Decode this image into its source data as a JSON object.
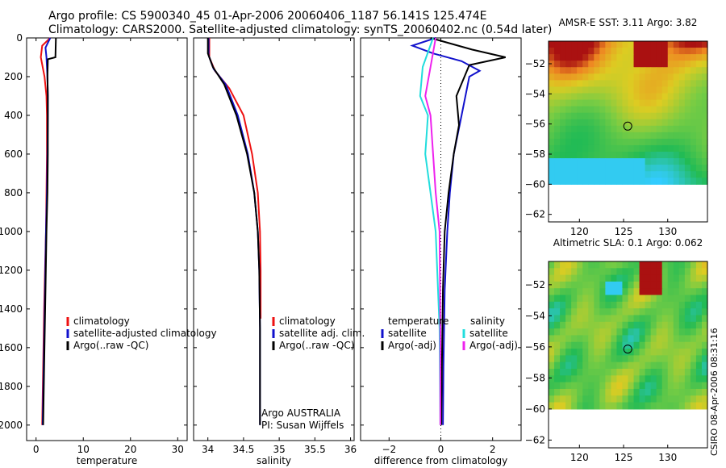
{
  "header": {
    "line1": "Argo profile: CS 5900340_45 01-Apr-2006 20060406_1187 56.141S 125.474E",
    "line2": "Climatology: CARS2000. Satellite-adjusted climatology: synTS_20060402.nc (0.54d later)"
  },
  "stamp": "CSIRO 08-Apr-2006 08:31:16",
  "colors": {
    "climatology": "#ee1111",
    "satellite": "#1111cc",
    "argo": "#000000",
    "salinity_satellite": "#22dddd",
    "salinity_argo": "#ee22ee"
  },
  "chart_data": [
    {
      "type": "line",
      "id": "temperature",
      "xlabel": "temperature",
      "ylabel": "",
      "xlim": [
        -2,
        32
      ],
      "ylim": [
        2080,
        0
      ],
      "xticks": [
        0,
        10,
        20,
        30
      ],
      "yticks": [
        0,
        200,
        400,
        600,
        800,
        1000,
        1200,
        1400,
        1600,
        1800,
        2000
      ],
      "legend": [
        "climatology",
        "satellite-adjusted climatology",
        "Argo(..raw -QC)"
      ],
      "series": [
        {
          "name": "climatology",
          "color": "#ee1111",
          "x": [
            3.0,
            1.3,
            1.0,
            1.4,
            1.8,
            2.2,
            2.3,
            2.3,
            2.2,
            2.1,
            1.9,
            1.7,
            1.5,
            1.3
          ],
          "y": [
            0,
            40,
            100,
            150,
            200,
            300,
            400,
            600,
            800,
            1000,
            1200,
            1400,
            1700,
            2000
          ]
        },
        {
          "name": "satellite-adjusted climatology",
          "color": "#1111cc",
          "x": [
            3.0,
            2.0,
            2.2,
            2.4,
            2.5,
            2.5,
            2.4,
            2.3,
            2.1,
            1.9,
            1.6,
            1.4
          ],
          "y": [
            0,
            50,
            100,
            200,
            300,
            400,
            600,
            800,
            1000,
            1300,
            1700,
            2000
          ]
        },
        {
          "name": "Argo(..raw -QC)",
          "color": "#000000",
          "x": [
            4.2,
            4.1,
            2.5,
            2.4,
            2.5,
            2.5,
            2.5,
            2.4,
            2.2,
            2.0,
            1.7,
            1.5
          ],
          "y": [
            0,
            100,
            110,
            200,
            300,
            400,
            600,
            800,
            1000,
            1300,
            1700,
            2000
          ]
        }
      ]
    },
    {
      "type": "line",
      "id": "salinity",
      "xlabel": "salinity",
      "ylabel": "",
      "xlim": [
        33.8,
        36.05
      ],
      "ylim": [
        2080,
        0
      ],
      "xticks": [
        34,
        34.5,
        35,
        35.5,
        36
      ],
      "legend": [
        "climatology",
        "satellite adj. clim.",
        "Argo(..raw -QC)"
      ],
      "annotations": [
        "Argo AUSTRALIA",
        "PI: Susan Wijffels"
      ],
      "series": [
        {
          "name": "climatology",
          "color": "#ee1111",
          "x": [
            34.02,
            34.02,
            34.1,
            34.3,
            34.5,
            34.62,
            34.7,
            34.73,
            34.74,
            34.74,
            34.74
          ],
          "y": [
            0,
            100,
            170,
            260,
            400,
            600,
            800,
            1000,
            1200,
            1400,
            1450
          ]
        },
        {
          "name": "satellite adj. clim.",
          "color": "#1111cc",
          "x": [
            34.01,
            34.01,
            34.08,
            34.25,
            34.42,
            34.56,
            34.65,
            34.7,
            34.72,
            34.73,
            34.73,
            34.73
          ],
          "y": [
            0,
            90,
            160,
            240,
            400,
            600,
            800,
            1000,
            1200,
            1500,
            1800,
            2000
          ]
        },
        {
          "name": "Argo(..raw -QC)",
          "color": "#000000",
          "x": [
            34.0,
            34.0,
            34.07,
            34.23,
            34.4,
            34.55,
            34.65,
            34.7,
            34.72,
            34.73,
            34.73,
            34.73
          ],
          "y": [
            0,
            80,
            150,
            240,
            400,
            600,
            800,
            1000,
            1200,
            1500,
            1800,
            2000
          ]
        }
      ]
    },
    {
      "type": "line",
      "id": "difference",
      "xlabel": "difference from climatology",
      "ylabel": "",
      "xlim": [
        -3.1,
        3.1
      ],
      "ylim": [
        2080,
        0
      ],
      "xticks": [
        -2,
        0,
        2
      ],
      "legend": [
        "temperature",
        "satellite",
        "Argo(-adj)",
        "salinity",
        "satellite",
        "Argo(-adj)"
      ],
      "series": [
        {
          "name": "temperature satellite",
          "color": "#1111cc",
          "x": [
            -0.2,
            -1.1,
            -0.3,
            0.8,
            1.5,
            1.1,
            0.8,
            0.5,
            0.35,
            0.25,
            0.15,
            0.1,
            0.08
          ],
          "y": [
            0,
            40,
            80,
            120,
            170,
            200,
            400,
            600,
            800,
            1000,
            1300,
            1700,
            2000
          ]
        },
        {
          "name": "temperature Argo(-adj)",
          "color": "#000000",
          "x": [
            -0.4,
            1.2,
            2.5,
            1.1,
            0.6,
            0.7,
            0.5,
            0.3,
            0.15,
            0.08,
            0.04,
            0.02
          ],
          "y": [
            0,
            60,
            100,
            140,
            300,
            450,
            600,
            800,
            1000,
            1300,
            1700,
            2000
          ]
        },
        {
          "name": "salinity satellite",
          "color": "#22dddd",
          "x": [
            -0.3,
            -0.7,
            -0.8,
            -0.5,
            -0.6,
            -0.4,
            -0.2,
            -0.05,
            -0.02
          ],
          "y": [
            0,
            150,
            300,
            400,
            600,
            800,
            1000,
            1500,
            2000
          ]
        },
        {
          "name": "salinity Argo(-adj)",
          "color": "#ee22ee",
          "x": [
            -0.2,
            -0.4,
            -0.6,
            -0.4,
            -0.3,
            -0.2,
            -0.05,
            -0.02,
            -0.02
          ],
          "y": [
            0,
            150,
            300,
            400,
            600,
            800,
            1000,
            1500,
            2000
          ]
        }
      ]
    },
    {
      "type": "heatmap",
      "id": "sst_map",
      "title": "AMSR-E SST: 3.11 Argo: 3.82",
      "xticks": [
        120,
        125,
        130
      ],
      "yticks": [
        -52,
        -54,
        -56,
        -58,
        -60,
        -62
      ],
      "xlim": [
        116.5,
        134.5
      ],
      "ylim": [
        -62.5,
        -50.5
      ],
      "marker": {
        "lon": 125.474,
        "lat": -56.141
      },
      "data_lat_min": -60
    },
    {
      "type": "heatmap",
      "id": "sla_map",
      "title": "Altimetric SLA: 0.1 Argo: 0.062",
      "xticks": [
        120,
        125,
        130
      ],
      "yticks": [
        -52,
        -54,
        -56,
        -58,
        -60,
        -62
      ],
      "xlim": [
        116.5,
        134.5
      ],
      "ylim": [
        -62.5,
        -50.5
      ],
      "marker": {
        "lon": 125.474,
        "lat": -56.141
      },
      "data_lat_min": -60
    }
  ]
}
